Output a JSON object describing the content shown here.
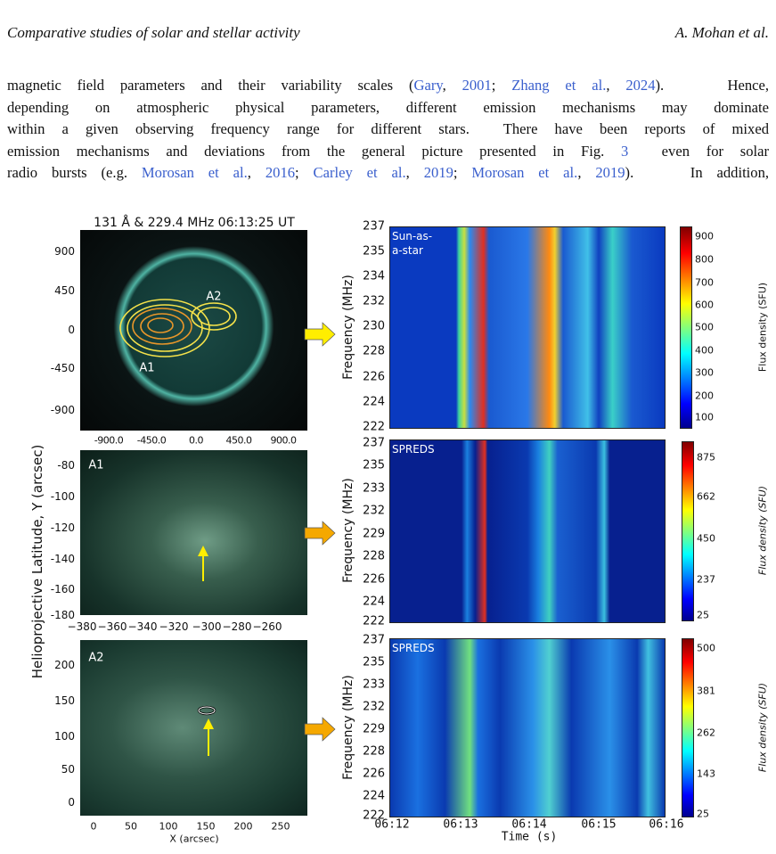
{
  "header": {
    "left": "Comparative studies of solar and stellar activity",
    "right": "A. Mohan et al."
  },
  "paragraph": {
    "lines": [
      [
        {
          "text": "magnetic field parameters and their variability scales ("
        },
        {
          "text": "Gary",
          "cite": true
        },
        {
          "text": ", "
        },
        {
          "text": "2001",
          "cite": true
        },
        {
          "text": "; "
        },
        {
          "text": "Zhang et al.",
          "cite": true
        },
        {
          "text": ", "
        },
        {
          "text": "2024",
          "cite": true
        },
        {
          "text": ").    Hence,"
        }
      ],
      [
        {
          "text": "depending on atmospheric physical parameters, different emission mechanisms may dominate"
        }
      ],
      [
        {
          "text": "within a given observing frequency range for different stars.  There have been reports of mixed"
        }
      ],
      [
        {
          "text": "emission mechanisms and deviations from the general picture presented in Fig. "
        },
        {
          "text": "3",
          "cite": true
        },
        {
          "text": "  even for solar"
        }
      ],
      [
        {
          "text": "radio bursts (e.g. "
        },
        {
          "text": "Morosan et al.",
          "cite": true
        },
        {
          "text": ", "
        },
        {
          "text": "2016",
          "cite": true
        },
        {
          "text": "; "
        },
        {
          "text": "Carley et al.",
          "cite": true
        },
        {
          "text": ", "
        },
        {
          "text": "2019",
          "cite": true
        },
        {
          "text": "; "
        },
        {
          "text": "Morosan et al.",
          "cite": true
        },
        {
          "text": ", "
        },
        {
          "text": "2019",
          "cite": true
        },
        {
          "text": ").    In addition,"
        }
      ]
    ]
  },
  "figure": {
    "y_axis_label": "Helioprojective Latitude, Y (arcsec)",
    "images": [
      {
        "title": "131 Å & 229.4 MHz  06:13:25 UT",
        "labels": [
          "A2",
          "A1"
        ],
        "yticks": [
          "900",
          "450",
          "0",
          "-450",
          "-900"
        ],
        "xticks": [
          "-900.0",
          "-450.0",
          "0.0",
          "450.0",
          "900.0"
        ]
      },
      {
        "labels": [
          "A1"
        ],
        "yticks": [
          "-80",
          "-100",
          "-120",
          "-140",
          "-160",
          "-180"
        ],
        "xticks": [
          "−380",
          "−360",
          "−340",
          "−320",
          "−300",
          "−280",
          "−260"
        ]
      },
      {
        "labels": [
          "A2"
        ],
        "yticks": [
          "200",
          "150",
          "100",
          "50",
          "0"
        ],
        "xticks": [
          "0",
          "50",
          "100",
          "150",
          "200",
          "250"
        ],
        "x_axis_label": "X (arcsec)"
      }
    ],
    "spectra": [
      {
        "label": "Sun-as-a-star",
        "y_axis_label": "Frequency (MHz)",
        "yticks": [
          "237",
          "235",
          "234",
          "232",
          "230",
          "228",
          "226",
          "224",
          "222"
        ],
        "colorbar_label": "Flux density (SFU)",
        "colorbar_ticks": [
          "900",
          "800",
          "700",
          "600",
          "500",
          "400",
          "300",
          "200",
          "100"
        ]
      },
      {
        "label": "SPREDS",
        "y_axis_label": "Frequency (MHz)",
        "yticks": [
          "237",
          "235",
          "233",
          "232",
          "229",
          "228",
          "226",
          "224",
          "222"
        ],
        "colorbar_label": "Flux density (SFU)",
        "colorbar_ticks": [
          "875",
          "662",
          "450",
          "237",
          "25"
        ]
      },
      {
        "label": "SPREDS",
        "y_axis_label": "Frequency (MHz)",
        "yticks": [
          "237",
          "235",
          "233",
          "232",
          "229",
          "228",
          "226",
          "224",
          "222"
        ],
        "colorbar_label": "Flux density (SFU)",
        "colorbar_ticks": [
          "500",
          "381",
          "262",
          "143",
          "25"
        ],
        "xticks": [
          "06:12",
          "06:13",
          "06:14",
          "06:15",
          "06:16"
        ],
        "x_axis_label": "Time (s)"
      }
    ]
  }
}
